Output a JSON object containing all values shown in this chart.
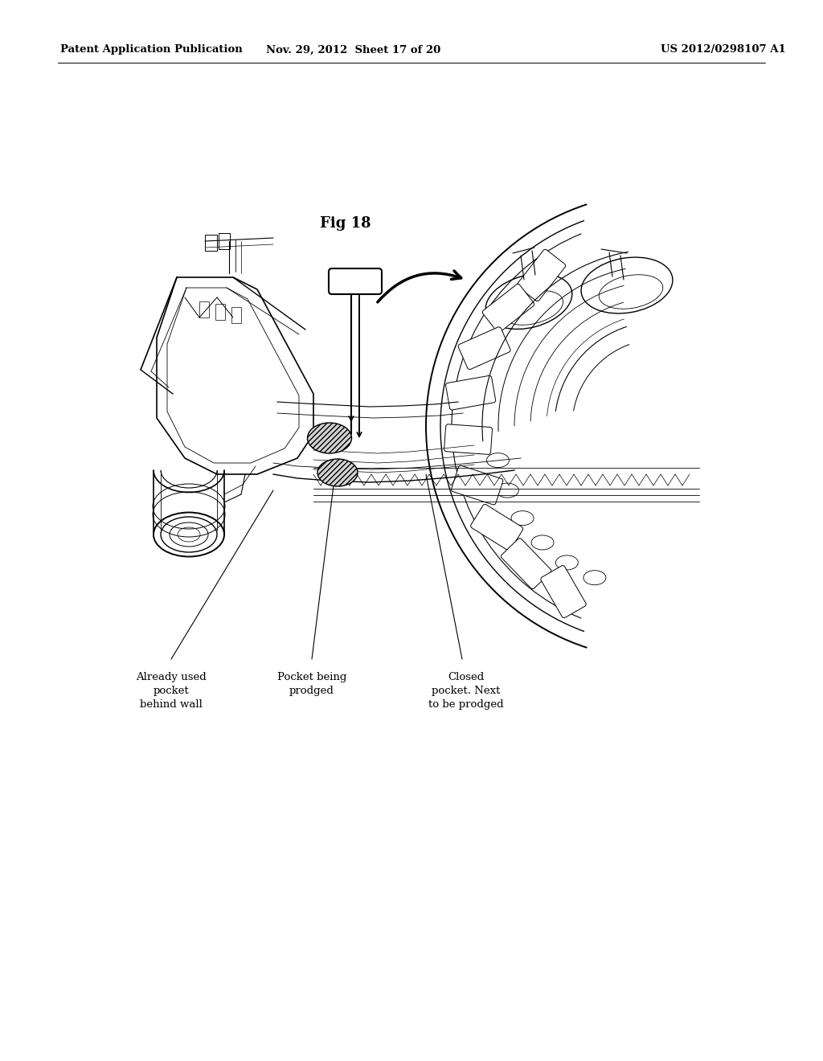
{
  "background_color": "#ffffff",
  "page_width": 10.24,
  "page_height": 13.2,
  "header_text_left": "Patent Application Publication",
  "header_text_mid": "Nov. 29, 2012  Sheet 17 of 20",
  "header_text_right": "US 2012/0298107 A1",
  "header_fontsize": 9.5,
  "fig_label": "Fig 18",
  "fig_label_fontsize": 13,
  "annotation_fontsize": 9.5,
  "label1_text": "Already used\npocket\nbehind wall",
  "label2_text": "Pocket being\nprodged",
  "label3_text": "Closed\npocket. Next\nto be prodged"
}
